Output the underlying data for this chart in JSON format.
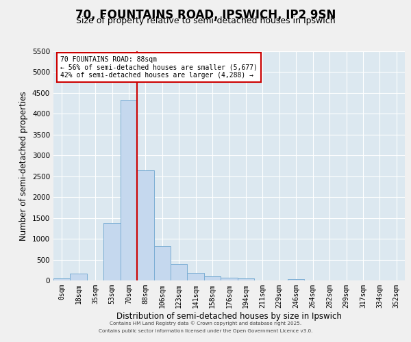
{
  "title1": "70, FOUNTAINS ROAD, IPSWICH, IP2 9SN",
  "title2": "Size of property relative to semi-detached houses in Ipswich",
  "xlabel": "Distribution of semi-detached houses by size in Ipswich",
  "ylabel": "Number of semi-detached properties",
  "bar_labels": [
    "0sqm",
    "18sqm",
    "35sqm",
    "53sqm",
    "70sqm",
    "88sqm",
    "106sqm",
    "123sqm",
    "141sqm",
    "158sqm",
    "176sqm",
    "194sqm",
    "211sqm",
    "229sqm",
    "246sqm",
    "264sqm",
    "282sqm",
    "299sqm",
    "317sqm",
    "334sqm",
    "352sqm"
  ],
  "bar_values": [
    55,
    160,
    5,
    1380,
    4330,
    2650,
    820,
    400,
    175,
    100,
    70,
    50,
    5,
    0,
    40,
    0,
    0,
    0,
    0,
    0,
    0
  ],
  "bar_color": "#c5d8ee",
  "bar_edgecolor": "#7aadd4",
  "bg_color": "#dce8f0",
  "grid_color": "#ffffff",
  "vline_color": "#cc0000",
  "annotation_title": "70 FOUNTAINS ROAD: 88sqm",
  "annotation_line1": "← 56% of semi-detached houses are smaller (5,677)",
  "annotation_line2": "42% of semi-detached houses are larger (4,288) →",
  "annotation_box_facecolor": "#ffffff",
  "annotation_box_edgecolor": "#cc0000",
  "ylim_max": 5500,
  "yticks": [
    0,
    500,
    1000,
    1500,
    2000,
    2500,
    3000,
    3500,
    4000,
    4500,
    5000,
    5500
  ],
  "footer1": "Contains HM Land Registry data © Crown copyright and database right 2025.",
  "footer2": "Contains public sector information licensed under the Open Government Licence v3.0.",
  "fig_bg": "#f0f0f0"
}
